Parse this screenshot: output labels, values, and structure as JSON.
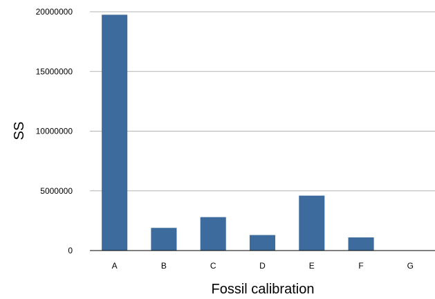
{
  "chart_data": {
    "type": "bar",
    "title": "",
    "xlabel": "Fossil calibration",
    "ylabel": "SS",
    "categories": [
      "A",
      "B",
      "C",
      "D",
      "E",
      "F",
      "G"
    ],
    "values": [
      19750000,
      1900000,
      2800000,
      1300000,
      4600000,
      1100000,
      0
    ],
    "ylim": [
      0,
      20000000
    ],
    "yticks": [
      0,
      5000000,
      10000000,
      15000000,
      20000000
    ],
    "ytick_labels": [
      "0",
      "5000000",
      "10000000",
      "15000000",
      "20000000"
    ],
    "grid": "horizontal",
    "legend": "none",
    "bar_color": "#3e6b9e"
  }
}
